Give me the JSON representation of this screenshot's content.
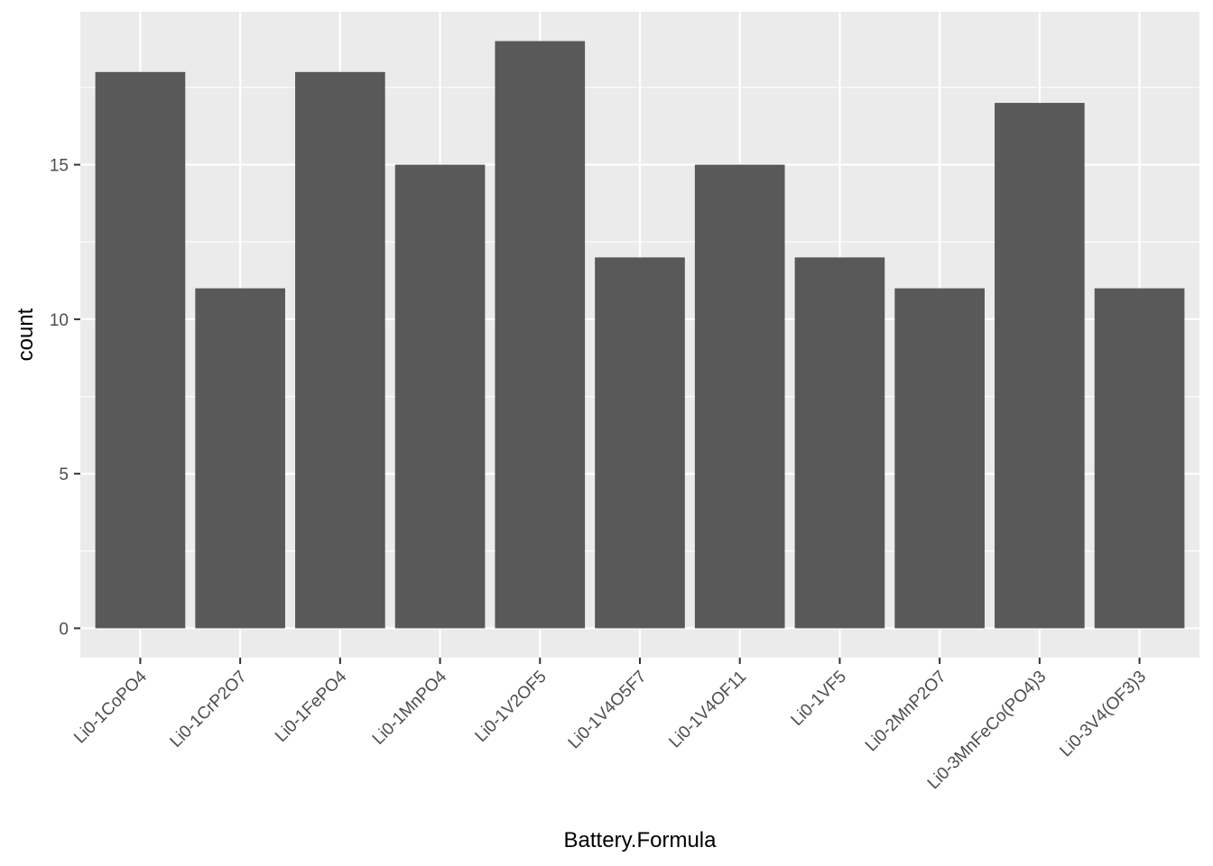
{
  "chart_data": {
    "type": "bar",
    "title": "",
    "xlabel": "Battery.Formula",
    "ylabel": "count",
    "categories": [
      "Li0-1CoPO4",
      "Li0-1CrP2O7",
      "Li0-1FePO4",
      "Li0-1MnPO4",
      "Li0-1V2OF5",
      "Li0-1V4O5F7",
      "Li0-1V4OF11",
      "Li0-1VF5",
      "Li0-2MnP2O7",
      "Li0-3MnFeCo(PO4)3",
      "Li0-3V4(OF3)3"
    ],
    "values": [
      18,
      11,
      18,
      15,
      19,
      12,
      15,
      12,
      11,
      17,
      11
    ],
    "ylim": [
      -0.95,
      19.95
    ],
    "yticks": [
      0,
      5,
      10,
      15
    ],
    "grid": true,
    "colors": {
      "panel_background": "#ebebeb",
      "grid_major": "#ffffff",
      "bar_fill": "#595959",
      "tick_text": "#4d4d4d",
      "tick_mark": "#333333"
    }
  }
}
